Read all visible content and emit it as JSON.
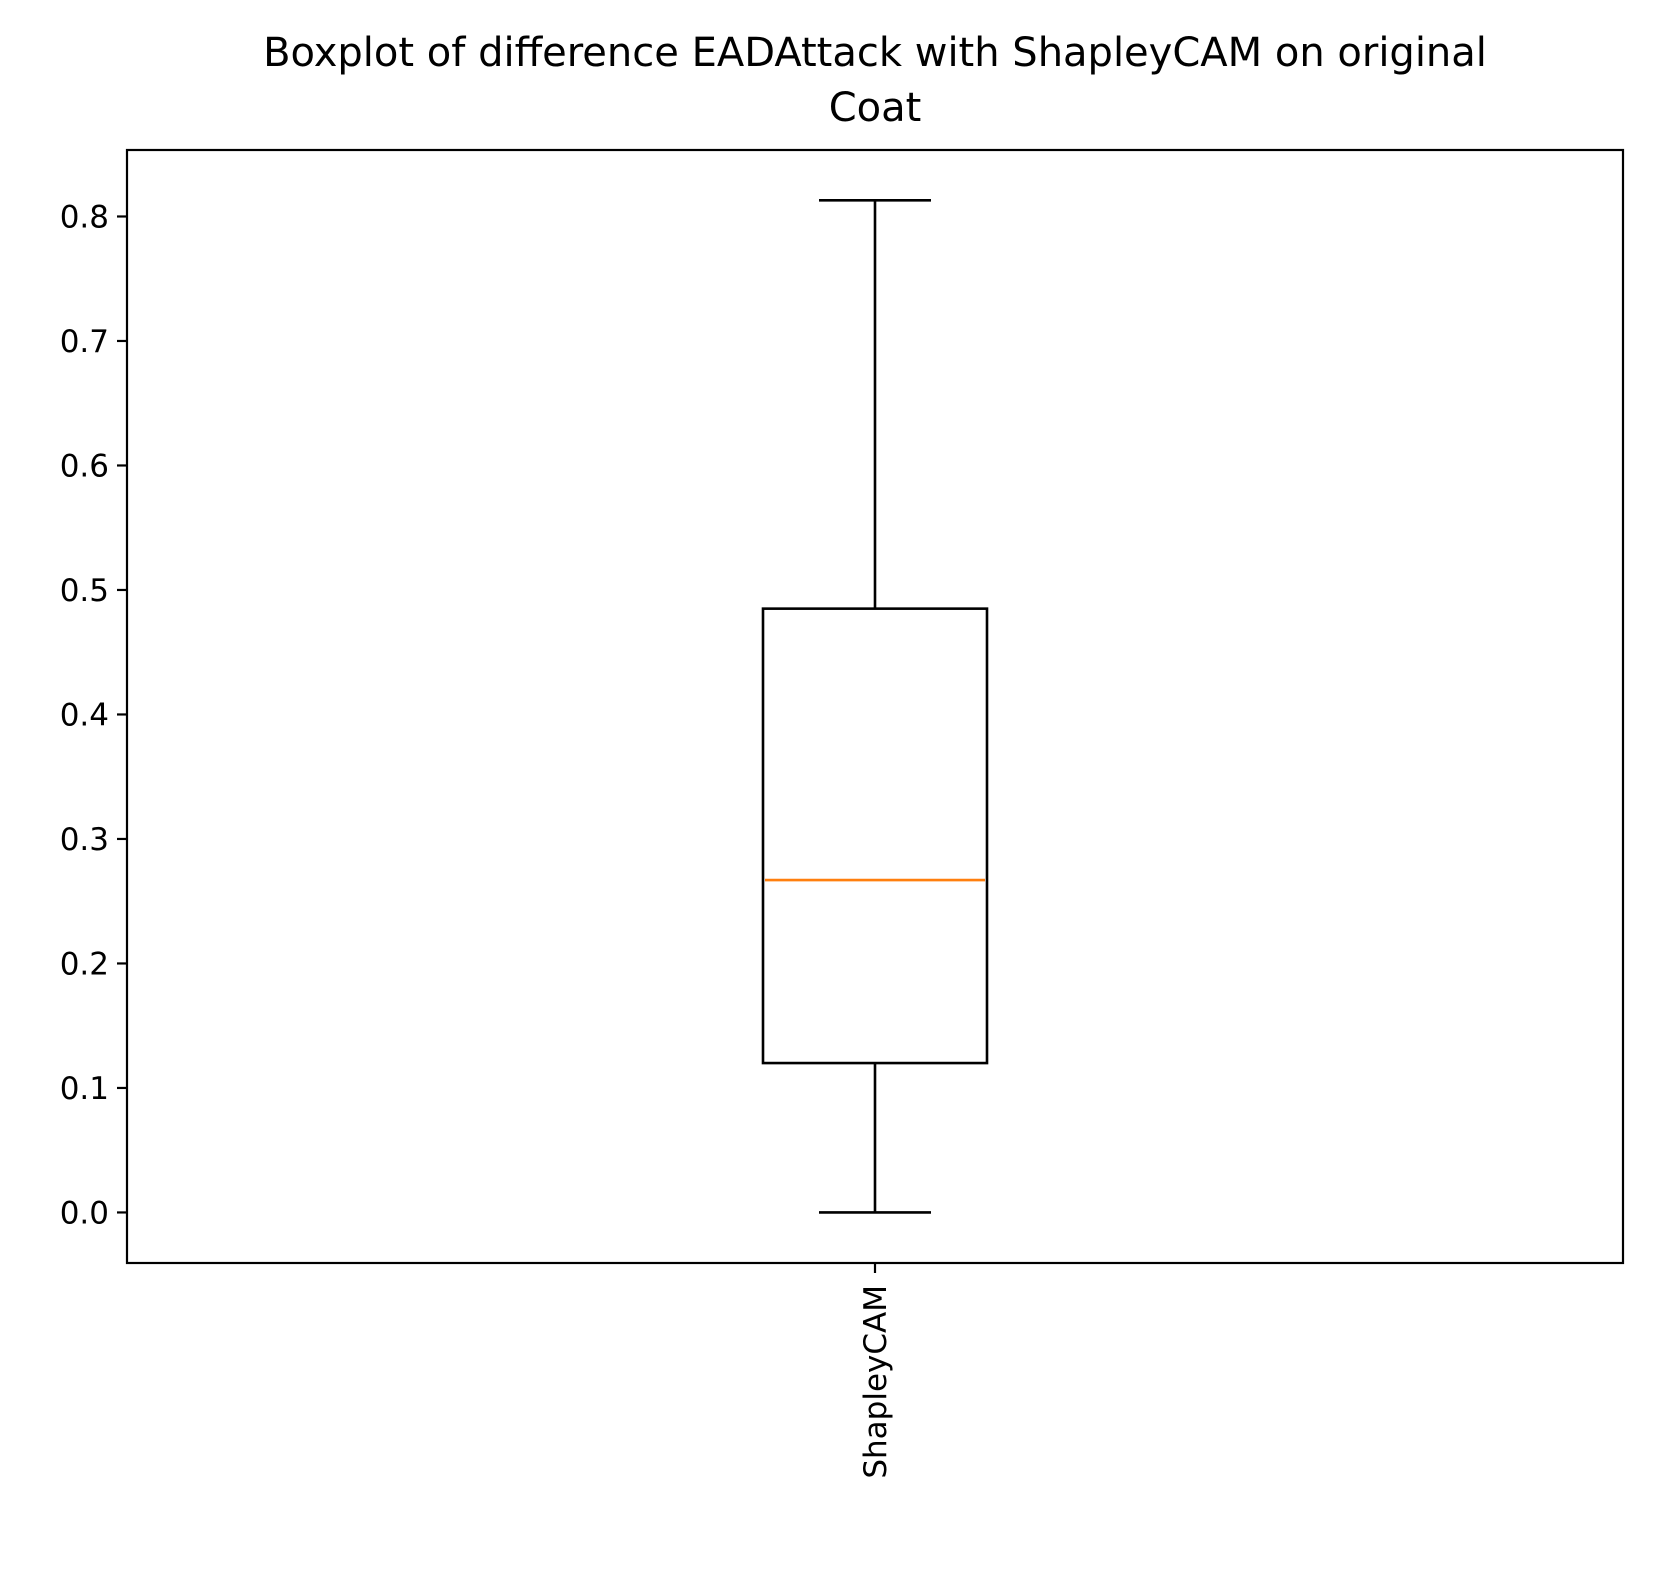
{
  "chart_data": {
    "type": "box",
    "title_lines": [
      "Boxplot of difference EADAttack with ShapleyCAM on original",
      "Coat"
    ],
    "xlabel": "",
    "ylabel": "",
    "categories": [
      "ShapleyCAM"
    ],
    "boxes": [
      {
        "label": "ShapleyCAM",
        "whisker_low": 0.0,
        "q1": 0.12,
        "median": 0.267,
        "q3": 0.485,
        "whisker_high": 0.813
      }
    ],
    "yticks": [
      0.0,
      0.1,
      0.2,
      0.3,
      0.4,
      0.5,
      0.6,
      0.7,
      0.8
    ],
    "ytick_labels": [
      "0.0",
      "0.1",
      "0.2",
      "0.3",
      "0.4",
      "0.5",
      "0.6",
      "0.7",
      "0.8"
    ],
    "ylim": [
      -0.0406,
      0.8534
    ],
    "grid": false,
    "legend": "none",
    "colors": {
      "box": "#000000",
      "median": "#ff7f0e",
      "background": "#ffffff"
    }
  }
}
